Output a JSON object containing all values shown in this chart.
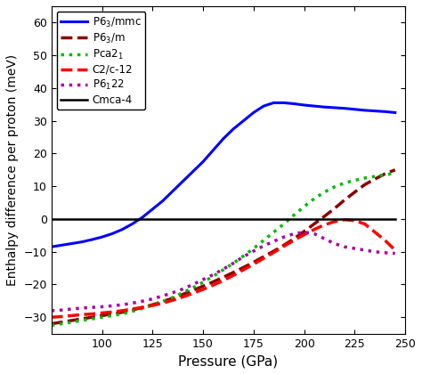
{
  "title": "",
  "xlabel": "Pressure (GPa)",
  "ylabel": "Enthalpy difference per proton (meV)",
  "xlim": [
    75,
    250
  ],
  "ylim": [
    -35,
    65
  ],
  "xticks": [
    100,
    125,
    150,
    175,
    200,
    225,
    250
  ],
  "yticks": [
    -30,
    -20,
    -10,
    0,
    10,
    20,
    30,
    40,
    50,
    60
  ],
  "background": "#ffffff",
  "series": [
    {
      "label": "P6$_3$/mmc",
      "color": "#0000ff",
      "linestyle": "solid",
      "linewidth": 2.2,
      "x": [
        75,
        80,
        85,
        90,
        95,
        100,
        105,
        110,
        115,
        120,
        125,
        130,
        135,
        140,
        145,
        150,
        155,
        160,
        165,
        170,
        175,
        180,
        185,
        190,
        195,
        200,
        205,
        210,
        215,
        220,
        225,
        230,
        235,
        240,
        245
      ],
      "y": [
        -8.5,
        -8.0,
        -7.5,
        -7.0,
        -6.3,
        -5.5,
        -4.5,
        -3.2,
        -1.5,
        0.5,
        3.0,
        5.5,
        8.5,
        11.5,
        14.5,
        17.5,
        21.0,
        24.5,
        27.5,
        30.0,
        32.5,
        34.5,
        35.5,
        35.5,
        35.2,
        34.8,
        34.5,
        34.2,
        34.0,
        33.8,
        33.5,
        33.2,
        33.0,
        32.8,
        32.5
      ]
    },
    {
      "label": "P6$_3$/m",
      "color": "#8b0000",
      "linestyle": "dashed",
      "linewidth": 2.5,
      "x": [
        75,
        80,
        85,
        90,
        95,
        100,
        105,
        110,
        115,
        120,
        125,
        130,
        135,
        140,
        145,
        150,
        155,
        160,
        165,
        170,
        175,
        180,
        185,
        190,
        195,
        200,
        205,
        210,
        215,
        220,
        225,
        230,
        235,
        240,
        245
      ],
      "y": [
        -32.0,
        -31.5,
        -31.0,
        -30.5,
        -30.0,
        -29.5,
        -29.0,
        -28.5,
        -27.8,
        -27.0,
        -26.2,
        -25.2,
        -24.2,
        -23.0,
        -21.8,
        -20.5,
        -19.2,
        -17.8,
        -16.3,
        -14.8,
        -13.2,
        -11.5,
        -9.8,
        -8.0,
        -6.0,
        -3.8,
        -1.5,
        0.8,
        3.2,
        5.8,
        8.2,
        10.5,
        12.2,
        13.8,
        15.0
      ]
    },
    {
      "label": "Pca2$_1$",
      "color": "#00bb00",
      "linestyle": "dotted",
      "linewidth": 2.5,
      "x": [
        75,
        80,
        85,
        90,
        95,
        100,
        105,
        110,
        115,
        120,
        125,
        130,
        135,
        140,
        145,
        150,
        155,
        160,
        165,
        170,
        175,
        180,
        185,
        190,
        195,
        200,
        205,
        210,
        215,
        220,
        225,
        230,
        235,
        240,
        245
      ],
      "y": [
        -32.5,
        -32.0,
        -31.5,
        -31.0,
        -30.5,
        -30.0,
        -29.5,
        -29.0,
        -28.2,
        -27.3,
        -26.3,
        -25.2,
        -24.0,
        -22.5,
        -21.0,
        -19.3,
        -17.5,
        -15.5,
        -13.5,
        -11.3,
        -9.0,
        -6.5,
        -4.0,
        -1.5,
        1.2,
        3.8,
        6.2,
        8.2,
        9.8,
        11.0,
        11.8,
        12.5,
        13.0,
        13.5,
        14.0
      ]
    },
    {
      "label": "C2/c-12",
      "color": "#ff0000",
      "linestyle": "dashed",
      "linewidth": 2.5,
      "x": [
        75,
        80,
        85,
        90,
        95,
        100,
        105,
        110,
        115,
        120,
        125,
        130,
        135,
        140,
        145,
        150,
        155,
        160,
        165,
        170,
        175,
        180,
        185,
        190,
        195,
        200,
        205,
        210,
        215,
        220,
        225,
        230,
        235,
        240,
        245
      ],
      "y": [
        -30.0,
        -29.8,
        -29.5,
        -29.2,
        -29.0,
        -28.7,
        -28.4,
        -28.0,
        -27.5,
        -27.0,
        -26.4,
        -25.7,
        -24.8,
        -23.8,
        -22.7,
        -21.5,
        -20.2,
        -18.8,
        -17.2,
        -15.5,
        -13.8,
        -12.0,
        -10.2,
        -8.3,
        -6.5,
        -4.8,
        -3.2,
        -1.8,
        -0.8,
        -0.2,
        -0.5,
        -1.5,
        -4.0,
        -6.5,
        -9.5
      ]
    },
    {
      "label": "P6$_1$22",
      "color": "#aa00aa",
      "linestyle": "dotted",
      "linewidth": 2.5,
      "x": [
        75,
        80,
        85,
        90,
        95,
        100,
        105,
        110,
        115,
        120,
        125,
        130,
        135,
        140,
        145,
        150,
        155,
        160,
        165,
        170,
        175,
        180,
        185,
        190,
        195,
        200,
        205,
        210,
        215,
        220,
        225,
        230,
        235,
        240,
        245
      ],
      "y": [
        -28.0,
        -27.8,
        -27.5,
        -27.2,
        -27.0,
        -26.8,
        -26.5,
        -26.2,
        -25.7,
        -25.1,
        -24.4,
        -23.5,
        -22.5,
        -21.4,
        -20.0,
        -18.5,
        -17.0,
        -15.3,
        -13.5,
        -11.5,
        -9.8,
        -8.2,
        -6.8,
        -5.5,
        -4.5,
        -4.0,
        -4.5,
        -6.0,
        -7.5,
        -8.5,
        -9.0,
        -9.5,
        -10.0,
        -10.3,
        -10.5
      ]
    },
    {
      "label": "Cmca-4",
      "color": "#000000",
      "linestyle": "solid",
      "linewidth": 1.8,
      "x": [
        75,
        245
      ],
      "y": [
        0,
        0
      ]
    }
  ]
}
